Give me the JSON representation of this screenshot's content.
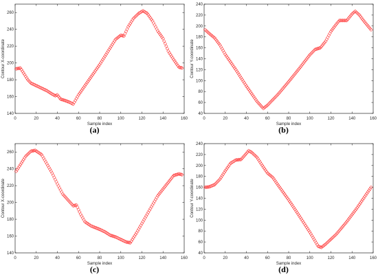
{
  "panels": [
    {
      "id": "a",
      "caption": "(a)"
    },
    {
      "id": "b",
      "caption": "(b)"
    },
    {
      "id": "c",
      "caption": "(c)"
    },
    {
      "id": "d",
      "caption": "(d)"
    }
  ],
  "colors": {
    "marker": "#ff3b3b",
    "axis": "#262626",
    "tick_text": "#262626"
  },
  "chart_data": [
    {
      "type": "scatter",
      "panel": "a",
      "marker": "diamond-open",
      "xlabel": "Sample index",
      "ylabel": "Contour X-coordinate",
      "xlim": [
        0,
        160
      ],
      "ylim": [
        140,
        270
      ],
      "xticks": [
        0,
        20,
        40,
        60,
        80,
        100,
        120,
        140,
        160
      ],
      "yticks": [
        140,
        160,
        180,
        200,
        220,
        240,
        260
      ],
      "grid": false,
      "x_range": [
        1,
        158
      ],
      "anchors": [
        [
          1,
          193
        ],
        [
          5,
          194
        ],
        [
          8,
          188
        ],
        [
          12,
          180
        ],
        [
          15,
          176
        ],
        [
          20,
          173
        ],
        [
          25,
          170
        ],
        [
          30,
          167
        ],
        [
          35,
          163
        ],
        [
          38,
          161
        ],
        [
          40,
          162
        ],
        [
          43,
          157
        ],
        [
          48,
          155
        ],
        [
          52,
          153
        ],
        [
          55,
          151
        ],
        [
          60,
          162
        ],
        [
          70,
          180
        ],
        [
          80,
          198
        ],
        [
          90,
          218
        ],
        [
          95,
          228
        ],
        [
          100,
          233
        ],
        [
          103,
          232
        ],
        [
          107,
          243
        ],
        [
          112,
          253
        ],
        [
          117,
          259
        ],
        [
          121,
          262
        ],
        [
          125,
          259
        ],
        [
          130,
          250
        ],
        [
          135,
          238
        ],
        [
          140,
          229
        ],
        [
          145,
          214
        ],
        [
          150,
          204
        ],
        [
          155,
          195
        ],
        [
          158,
          194
        ]
      ]
    },
    {
      "type": "scatter",
      "panel": "b",
      "marker": "diamond-open",
      "xlabel": "Sample index",
      "ylabel": "Contour Y-coordinate",
      "xlim": [
        0,
        160
      ],
      "ylim": [
        40,
        240
      ],
      "xticks": [
        0,
        20,
        40,
        60,
        80,
        100,
        120,
        140,
        160
      ],
      "yticks": [
        40,
        60,
        80,
        100,
        120,
        140,
        160,
        180,
        200,
        220,
        240
      ],
      "grid": false,
      "x_range": [
        1,
        158
      ],
      "anchors": [
        [
          1,
          193
        ],
        [
          5,
          186
        ],
        [
          10,
          178
        ],
        [
          15,
          165
        ],
        [
          20,
          148
        ],
        [
          30,
          120
        ],
        [
          40,
          90
        ],
        [
          50,
          62
        ],
        [
          56,
          49
        ],
        [
          60,
          55
        ],
        [
          70,
          75
        ],
        [
          80,
          98
        ],
        [
          90,
          122
        ],
        [
          100,
          147
        ],
        [
          105,
          157
        ],
        [
          110,
          160
        ],
        [
          115,
          172
        ],
        [
          120,
          190
        ],
        [
          125,
          203
        ],
        [
          128,
          210
        ],
        [
          135,
          210
        ],
        [
          140,
          222
        ],
        [
          143,
          227
        ],
        [
          147,
          220
        ],
        [
          150,
          212
        ],
        [
          155,
          200
        ],
        [
          158,
          193
        ]
      ]
    },
    {
      "type": "scatter",
      "panel": "c",
      "marker": "diamond-open",
      "xlabel": "Sample index",
      "ylabel": "Contour X-coordinate",
      "xlim": [
        0,
        160
      ],
      "ylim": [
        140,
        270
      ],
      "xticks": [
        0,
        20,
        40,
        60,
        80,
        100,
        120,
        140,
        160
      ],
      "yticks": [
        140,
        160,
        180,
        200,
        220,
        240,
        260
      ],
      "grid": false,
      "x_range": [
        1,
        158
      ],
      "anchors": [
        [
          1,
          237
        ],
        [
          5,
          245
        ],
        [
          10,
          255
        ],
        [
          15,
          261
        ],
        [
          19,
          262
        ],
        [
          25,
          257
        ],
        [
          30,
          246
        ],
        [
          35,
          235
        ],
        [
          40,
          222
        ],
        [
          45,
          210
        ],
        [
          50,
          203
        ],
        [
          55,
          196
        ],
        [
          58,
          197
        ],
        [
          62,
          186
        ],
        [
          66,
          177
        ],
        [
          72,
          172
        ],
        [
          80,
          168
        ],
        [
          85,
          165
        ],
        [
          90,
          161
        ],
        [
          95,
          159
        ],
        [
          100,
          156
        ],
        [
          105,
          153
        ],
        [
          109,
          152
        ],
        [
          115,
          164
        ],
        [
          125,
          186
        ],
        [
          135,
          208
        ],
        [
          145,
          224
        ],
        [
          150,
          232
        ],
        [
          155,
          234
        ],
        [
          158,
          233
        ]
      ]
    },
    {
      "type": "scatter",
      "panel": "d",
      "marker": "diamond-open",
      "xlabel": "Sample index",
      "ylabel": "Contour Y-coordinate",
      "xlim": [
        0,
        160
      ],
      "ylim": [
        40,
        240
      ],
      "xticks": [
        0,
        20,
        40,
        60,
        80,
        100,
        120,
        140,
        160
      ],
      "yticks": [
        40,
        60,
        80,
        100,
        120,
        140,
        160,
        180,
        200,
        220,
        240
      ],
      "grid": false,
      "x_range": [
        1,
        158
      ],
      "anchors": [
        [
          1,
          160
        ],
        [
          5,
          161
        ],
        [
          10,
          165
        ],
        [
          15,
          175
        ],
        [
          20,
          190
        ],
        [
          25,
          204
        ],
        [
          30,
          210
        ],
        [
          35,
          211
        ],
        [
          40,
          222
        ],
        [
          42,
          227
        ],
        [
          45,
          224
        ],
        [
          50,
          215
        ],
        [
          55,
          200
        ],
        [
          60,
          186
        ],
        [
          65,
          178
        ],
        [
          70,
          164
        ],
        [
          80,
          137
        ],
        [
          90,
          108
        ],
        [
          100,
          78
        ],
        [
          108,
          52
        ],
        [
          111,
          50
        ],
        [
          115,
          56
        ],
        [
          125,
          74
        ],
        [
          135,
          97
        ],
        [
          145,
          123
        ],
        [
          152,
          143
        ],
        [
          158,
          160
        ]
      ]
    }
  ]
}
